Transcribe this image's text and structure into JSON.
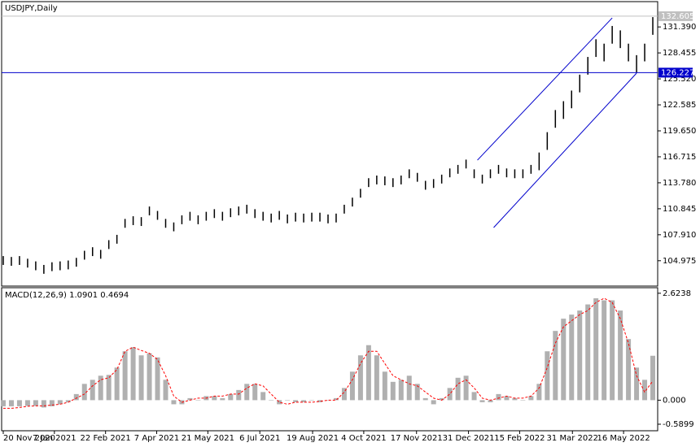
{
  "chart_data": [
    {
      "type": "hilo",
      "title": "USDJPY,Daily",
      "color": "#000000",
      "high": [
        105.5,
        105.4,
        105.5,
        105.2,
        104.9,
        104.5,
        104.8,
        104.9,
        105.0,
        105.3,
        106.1,
        106.5,
        106.2,
        107.3,
        107.9,
        109.7,
        110.0,
        109.9,
        111.1,
        110.6,
        109.7,
        109.3,
        110.1,
        110.5,
        110.1,
        110.5,
        110.8,
        110.5,
        110.9,
        111.1,
        111.3,
        110.8,
        110.5,
        110.3,
        110.6,
        110.2,
        110.4,
        110.3,
        110.4,
        110.4,
        110.2,
        110.3,
        111.3,
        112.1,
        113.1,
        114.3,
        114.6,
        114.5,
        114.3,
        114.6,
        115.3,
        114.9,
        114.0,
        114.2,
        114.7,
        115.4,
        115.8,
        116.4,
        115.3,
        114.7,
        115.3,
        115.8,
        115.4,
        115.3,
        115.3,
        115.8,
        117.2,
        119.5,
        122.0,
        123.0,
        124.2,
        126.0,
        128.0,
        130.0,
        129.5,
        131.5,
        131.0,
        129.5,
        128.2,
        129.5,
        132.5
      ],
      "low": [
        104.5,
        104.4,
        104.5,
        104.2,
        103.9,
        103.5,
        103.8,
        103.9,
        104.0,
        104.3,
        105.1,
        105.5,
        105.2,
        106.3,
        106.9,
        108.7,
        109.0,
        108.9,
        110.1,
        109.6,
        108.7,
        108.3,
        109.1,
        109.5,
        109.1,
        109.5,
        109.8,
        109.5,
        109.9,
        110.1,
        110.3,
        109.8,
        109.5,
        109.3,
        109.6,
        109.2,
        109.4,
        109.3,
        109.4,
        109.4,
        109.2,
        109.3,
        110.3,
        111.1,
        112.1,
        113.3,
        113.6,
        113.5,
        113.3,
        113.6,
        114.3,
        113.9,
        113.0,
        113.2,
        113.7,
        114.4,
        114.8,
        115.4,
        114.3,
        113.7,
        114.3,
        114.8,
        114.4,
        114.3,
        114.3,
        114.8,
        115.2,
        117.5,
        120.0,
        121.0,
        122.2,
        124.0,
        126.0,
        128.0,
        127.5,
        129.5,
        129.0,
        127.5,
        126.2,
        127.5,
        130.5
      ],
      "ylim": [
        102.11,
        134.25
      ],
      "yticks": [
        {
          "value": 131.39,
          "label": "131.390"
        },
        128.455,
        {
          "value": 125.52,
          "label": "125.520"
        },
        122.585,
        {
          "value": 119.65,
          "label": "119.650"
        },
        116.715,
        {
          "value": 113.78,
          "label": "113.780"
        },
        110.845,
        {
          "value": 107.91,
          "label": "107.910"
        },
        104.975
      ],
      "xlim": [
        -0.2,
        80.6
      ],
      "xticks": [
        {
          "value": 0,
          "label": "20 Nov 2020"
        },
        {
          "value": 6.3,
          "label": "7 Jan 2021"
        },
        {
          "value": 12.6,
          "label": "22 Feb 2021"
        },
        {
          "value": 18.9,
          "label": "7 Apr 2021"
        },
        {
          "value": 25.2,
          "label": "21 May 2021"
        },
        {
          "value": 31.6,
          "label": "6 Jul 2021"
        },
        {
          "value": 38.1,
          "label": "19 Aug 2021"
        },
        {
          "value": 44.4,
          "label": "4 Oct 2021"
        },
        {
          "value": 50.9,
          "label": "17 Nov 2021"
        },
        {
          "value": 57.3,
          "label": "31 Dec 2021"
        },
        {
          "value": 63.6,
          "label": "15 Feb 2022"
        },
        {
          "value": 70.1,
          "label": "31 Mar 2022"
        },
        {
          "value": 76.4,
          "label": "16 May 2022"
        }
      ],
      "current_price": 132.605,
      "current_color": "#c0c0c0",
      "hline": 126.227,
      "hline_color": "#0000cc",
      "trendlines": [
        {
          "x": [
            58.4,
            75.0
          ],
          "y": [
            116.34,
            132.41
          ]
        },
        {
          "x": [
            60.4,
            78.0
          ],
          "y": [
            108.72,
            126.17
          ]
        }
      ],
      "trend_color": "#0000cc"
    },
    {
      "type": "macd",
      "title": "MACD(12,26,9) 1.0901 0.4694",
      "series": [
        {
          "name": "MACD",
          "color": "#b0b0b0",
          "values": [
            -0.15,
            -0.15,
            -0.15,
            -0.14,
            -0.14,
            -0.18,
            -0.15,
            -0.1,
            -0.05,
            0.15,
            0.4,
            0.5,
            0.6,
            0.62,
            0.8,
            1.2,
            1.3,
            1.1,
            1.15,
            1.05,
            0.5,
            -0.1,
            -0.1,
            0.05,
            0.0,
            0.1,
            0.1,
            0.05,
            0.15,
            0.25,
            0.4,
            0.4,
            0.2,
            0.0,
            -0.1,
            0.0,
            -0.05,
            -0.05,
            0.0,
            -0.05,
            0.0,
            0.05,
            0.3,
            0.7,
            1.1,
            1.35,
            1.1,
            0.7,
            0.45,
            0.5,
            0.6,
            0.4,
            0.05,
            -0.1,
            0.05,
            0.3,
            0.55,
            0.6,
            0.2,
            -0.05,
            -0.05,
            0.15,
            0.1,
            0.05,
            0.0,
            0.1,
            0.4,
            1.2,
            1.7,
            2.0,
            2.1,
            2.2,
            2.35,
            2.5,
            2.45,
            2.45,
            2.2,
            1.5,
            0.8,
            0.5,
            1.09
          ]
        },
        {
          "name": "Signal",
          "color": "#ff0000",
          "values": [
            -0.2,
            -0.2,
            -0.18,
            -0.15,
            -0.14,
            -0.14,
            -0.12,
            -0.1,
            -0.05,
            0.05,
            0.15,
            0.35,
            0.5,
            0.55,
            0.75,
            1.2,
            1.3,
            1.22,
            1.15,
            1.0,
            0.6,
            0.1,
            -0.05,
            0.0,
            0.05,
            0.05,
            0.1,
            0.1,
            0.15,
            0.15,
            0.3,
            0.4,
            0.35,
            0.15,
            -0.05,
            -0.1,
            -0.05,
            -0.05,
            -0.05,
            -0.03,
            0.0,
            0.0,
            0.2,
            0.5,
            0.9,
            1.2,
            1.2,
            0.9,
            0.6,
            0.5,
            0.4,
            0.35,
            0.2,
            0.05,
            0.0,
            0.15,
            0.4,
            0.5,
            0.3,
            0.05,
            0.0,
            0.05,
            0.1,
            0.05,
            0.05,
            0.1,
            0.3,
            0.8,
            1.4,
            1.8,
            1.95,
            2.1,
            2.2,
            2.4,
            2.5,
            2.4,
            2.0,
            1.4,
            0.6,
            0.2,
            0.47
          ]
        }
      ],
      "ylim": [
        -0.75,
        2.76
      ],
      "yticks": [
        2.6238,
        {
          "value": 0,
          "label": "0.000"
        },
        -0.5899
      ]
    }
  ]
}
